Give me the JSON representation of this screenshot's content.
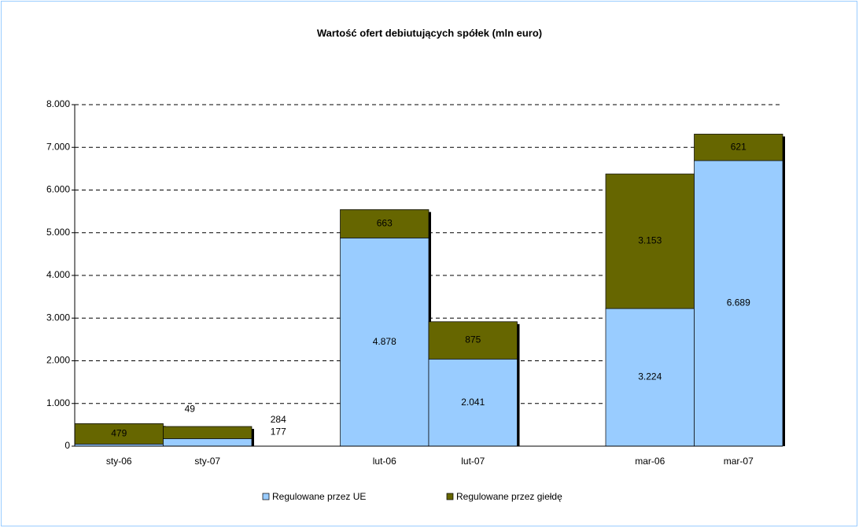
{
  "chart_data": {
    "type": "bar",
    "stacked": true,
    "title": "Wartość ofert debiutujących spółek (mln euro)",
    "categories": [
      "sty-06",
      "sty-07",
      null,
      "lut-06",
      "lut-07",
      null,
      "mar-06",
      "mar-07"
    ],
    "series": [
      {
        "name": "Regulowane przez UE",
        "color": "#99ccff",
        "values": [
          49,
          177,
          null,
          4878,
          2041,
          null,
          3224,
          6689
        ],
        "value_labels": [
          "49",
          "177",
          null,
          "4.878",
          "2.041",
          null,
          "3.224",
          "6.689"
        ]
      },
      {
        "name": "Regulowane przez giełdę",
        "color": "#666600",
        "values": [
          479,
          284,
          null,
          663,
          875,
          null,
          3153,
          621
        ],
        "value_labels": [
          "479",
          "284",
          null,
          "663",
          "875",
          null,
          "3.153",
          "621"
        ]
      }
    ],
    "ylim": [
      0,
      8000
    ],
    "yticks": [
      0,
      {
        "value": 1000,
        "label": "1.000"
      },
      {
        "value": 2000,
        "label": "2.000"
      },
      {
        "value": 3000,
        "label": "3.000"
      },
      {
        "value": 4000,
        "label": "4.000"
      },
      {
        "value": 5000,
        "label": "5.000"
      },
      {
        "value": 6000,
        "label": "6.000"
      },
      {
        "value": 7000,
        "label": "7.000"
      },
      {
        "value": 8000,
        "label": "8.000"
      }
    ],
    "grid": true,
    "legend": "bottom"
  }
}
